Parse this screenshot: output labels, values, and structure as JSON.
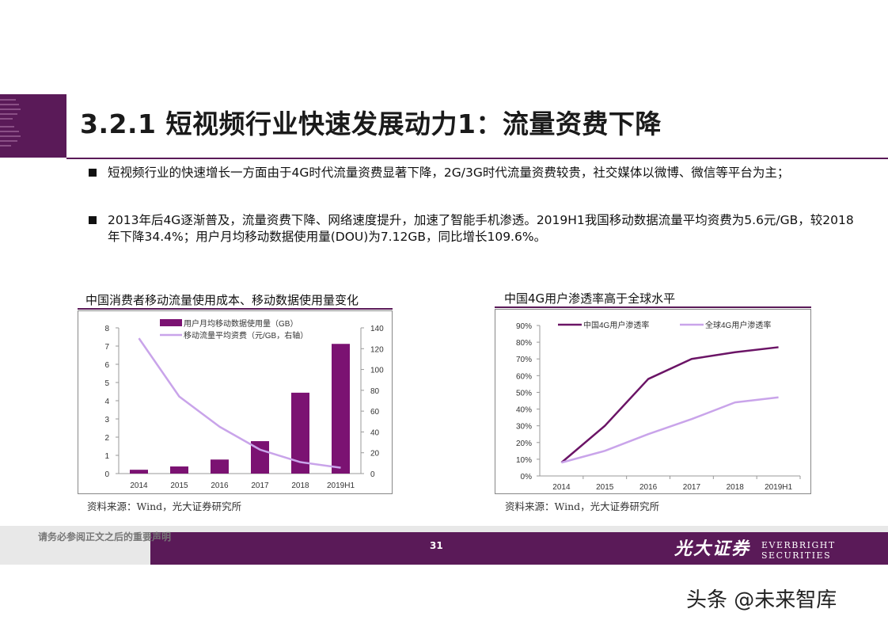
{
  "title": "3.2.1 短视频行业快速发展动力1：流量资费下降",
  "bullets": [
    "短视频行业的快速增长一方面由于4G时代流量资费显著下降，2G/3G时代流量资费较贵，社交媒体以微博、微信等平台为主；",
    "2013年后4G逐渐普及，流量资费下降、网络速度提升，加速了智能手机渗透。2019H1我国移动数据流量平均资费为5.6元/GB，较2018年下降34.4%；用户月均移动数据使用量(DOU)为7.12GB，同比增长109.6%。"
  ],
  "chart_data": [
    {
      "type": "bar",
      "title": "中国消费者移动流量使用成本、移动数据使用量变化",
      "categories": [
        "2014",
        "2015",
        "2016",
        "2017",
        "2018",
        "2019H1"
      ],
      "series": [
        {
          "name": "用户月均移动数据使用量（GB）",
          "type": "bar",
          "axis": "left",
          "color": "#7b1272",
          "values": [
            0.21,
            0.39,
            0.77,
            1.78,
            4.44,
            7.12
          ]
        },
        {
          "name": "移动流量平均资费（元/GB，右轴）",
          "type": "line",
          "axis": "right",
          "color": "#c9a4ea",
          "values": [
            130,
            74,
            45,
            23,
            11,
            5.6
          ]
        }
      ],
      "ylim_left": [
        0,
        8
      ],
      "yticks_left": [
        "0",
        "1",
        "2",
        "3",
        "4",
        "5",
        "6",
        "7",
        "8"
      ],
      "ylim_right": [
        0,
        140
      ],
      "yticks_right": [
        "0",
        "20",
        "40",
        "60",
        "80",
        "100",
        "120",
        "140"
      ],
      "legend": "top-left",
      "grid": false,
      "source": "资料来源：Wind，光大证券研究所"
    },
    {
      "type": "line",
      "title": "中国4G用户渗透率高于全球水平",
      "categories": [
        "2014",
        "2015",
        "2016",
        "2017",
        "2018",
        "2019H1"
      ],
      "series": [
        {
          "name": "中国4G用户渗透率",
          "color": "#6b1466",
          "values": [
            8,
            30,
            58,
            70,
            74,
            77
          ]
        },
        {
          "name": "全球4G用户渗透率",
          "color": "#c9a4ea",
          "values": [
            8,
            15,
            25,
            34,
            44,
            47
          ]
        }
      ],
      "ylim": [
        0,
        90
      ],
      "yticks": [
        "0%",
        "10%",
        "20%",
        "30%",
        "40%",
        "50%",
        "60%",
        "70%",
        "80%",
        "90%"
      ],
      "legend": "top",
      "grid": false,
      "source": "资料来源：Wind，光大证券研究所"
    }
  ],
  "footer": {
    "note": "请务必参阅正文之后的重要声明",
    "page": "31",
    "brand_cn": "光大证券",
    "brand_en": "EVERBRIGHT SECURITIES"
  },
  "watermark": "头条 @未来智库",
  "colors": {
    "brand": "#5a1a58",
    "bar": "#7b1272",
    "line_light": "#c9a4ea",
    "line_dark": "#6b1466"
  }
}
